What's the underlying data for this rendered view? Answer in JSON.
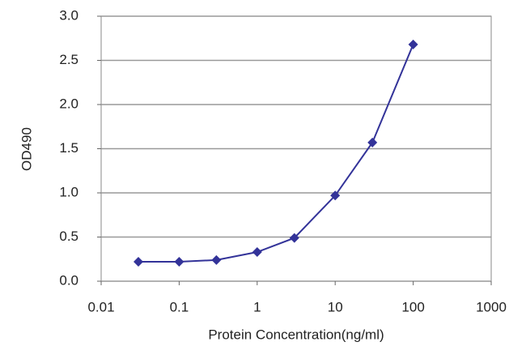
{
  "chart_data": {
    "type": "line",
    "x_label": "Protein Concentration(ng/ml)",
    "y_label": "OD490",
    "x": [
      0.03,
      0.1,
      0.3,
      1,
      3,
      10,
      30,
      100
    ],
    "series": [
      {
        "color": "#333399",
        "values": [
          0.22,
          0.22,
          0.24,
          0.33,
          0.49,
          0.97,
          1.57,
          2.68
        ]
      }
    ],
    "xscale": "log",
    "xlim": [
      0.01,
      1000
    ],
    "xticks": [
      0.01,
      0.1,
      1,
      10,
      100,
      1000
    ],
    "ylim": [
      0,
      3
    ],
    "yticks": [
      {
        "value": 0,
        "label": "0.0"
      },
      {
        "value": 0.5,
        "label": "0.5"
      },
      {
        "value": 1,
        "label": "1.0"
      },
      {
        "value": 1.5,
        "label": "1.5"
      },
      {
        "value": 2,
        "label": "2.0"
      },
      {
        "value": 2.5,
        "label": "2.5"
      },
      {
        "value": 3,
        "label": "3.0"
      }
    ],
    "grid": true
  }
}
